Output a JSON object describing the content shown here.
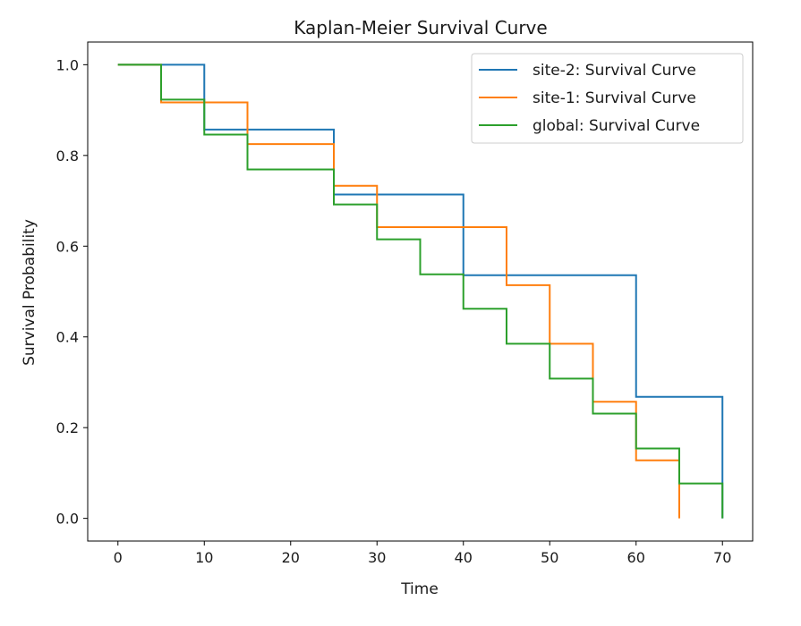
{
  "chart_data": {
    "type": "line",
    "step": "post",
    "title": "Kaplan-Meier Survival Curve",
    "xlabel": "Time",
    "ylabel": "Survival Probability",
    "xlim": [
      -3.5,
      73.5
    ],
    "ylim": [
      -0.05,
      1.05
    ],
    "xticks": [
      0,
      10,
      20,
      30,
      40,
      50,
      60,
      70
    ],
    "xtick_labels": [
      "0",
      "10",
      "20",
      "30",
      "40",
      "50",
      "60",
      "70"
    ],
    "yticks": [
      0.0,
      0.2,
      0.4,
      0.6,
      0.8,
      1.0
    ],
    "ytick_labels": [
      "0.0",
      "0.2",
      "0.4",
      "0.6",
      "0.8",
      "1.0"
    ],
    "grid": false,
    "legend_position": "top-right",
    "series": [
      {
        "name": "site-2: Survival Curve",
        "color": "#1f77b4",
        "x": [
          0,
          10,
          25,
          40,
          60,
          70
        ],
        "y": [
          1.0,
          0.857,
          0.714,
          0.536,
          0.268,
          0.0
        ]
      },
      {
        "name": "site-1: Survival Curve",
        "color": "#ff7f0e",
        "x": [
          0,
          5,
          15,
          25,
          30,
          45,
          50,
          55,
          60,
          65
        ],
        "y": [
          1.0,
          0.917,
          0.825,
          0.733,
          0.642,
          0.514,
          0.385,
          0.257,
          0.128,
          0.0
        ]
      },
      {
        "name": "global: Survival Curve",
        "color": "#2ca02c",
        "x": [
          0,
          5,
          10,
          15,
          25,
          30,
          35,
          40,
          45,
          50,
          55,
          60,
          65,
          70
        ],
        "y": [
          1.0,
          0.923,
          0.846,
          0.769,
          0.692,
          0.615,
          0.538,
          0.462,
          0.385,
          0.308,
          0.231,
          0.154,
          0.077,
          0.0
        ]
      }
    ]
  }
}
